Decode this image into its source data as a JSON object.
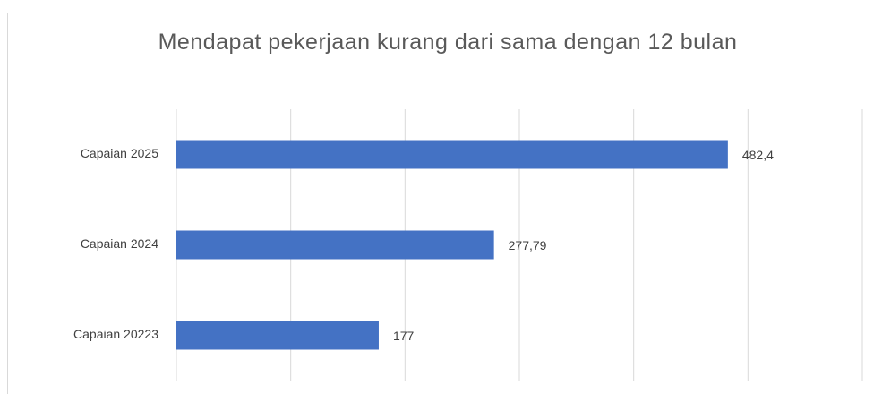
{
  "chart_data": {
    "type": "bar",
    "orientation": "horizontal",
    "title": "Mendapat pekerjaan kurang dari sama dengan 12 bulan",
    "categories": [
      "Capaian 2025",
      "Capaian 2024",
      "Capaian 20223"
    ],
    "values": [
      482.4,
      277.79,
      177
    ],
    "value_labels": [
      "482,4",
      "277,79",
      "177"
    ],
    "color": "#4472c4",
    "xlim": [
      0,
      600
    ],
    "xticks": [
      0,
      100,
      200,
      300,
      400,
      500,
      600
    ],
    "grid": true
  }
}
